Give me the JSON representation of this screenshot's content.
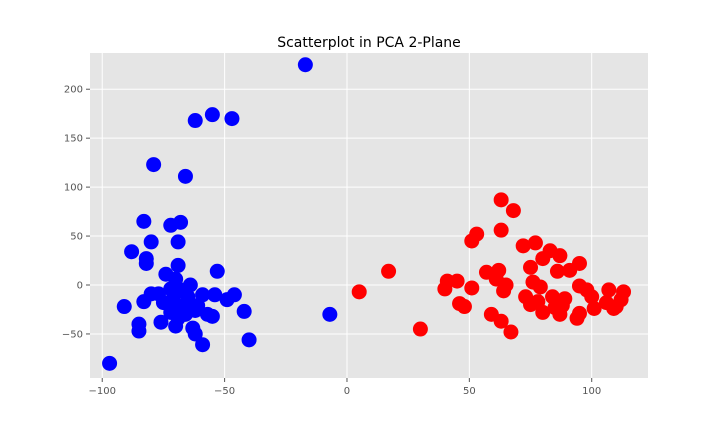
{
  "chart_data": {
    "type": "scatter",
    "title": "Scatterplot in PCA 2-Plane",
    "xlabel": "",
    "ylabel": "",
    "xlim": [
      -105,
      123
    ],
    "ylim": [
      -95,
      237
    ],
    "x_ticks": [
      -100,
      -50,
      0,
      50,
      100
    ],
    "y_ticks": [
      -50,
      0,
      50,
      100,
      150,
      200
    ],
    "grid": true,
    "background": "#e5e5e5",
    "series": [
      {
        "color": "#0000ff",
        "points": [
          [
            -17,
            225
          ],
          [
            -55,
            174
          ],
          [
            -47,
            170
          ],
          [
            -62,
            168
          ],
          [
            -79,
            123
          ],
          [
            -66,
            111
          ],
          [
            -83,
            65
          ],
          [
            -68,
            64
          ],
          [
            -72,
            61
          ],
          [
            -80,
            44
          ],
          [
            -69,
            44
          ],
          [
            -88,
            34
          ],
          [
            -82,
            27
          ],
          [
            -82,
            22
          ],
          [
            -69,
            20
          ],
          [
            -53,
            14
          ],
          [
            -74,
            11
          ],
          [
            -70,
            6
          ],
          [
            -64,
            0
          ],
          [
            -72,
            -4
          ],
          [
            -68,
            -5
          ],
          [
            -77,
            -9
          ],
          [
            -80,
            -9
          ],
          [
            -59,
            -10
          ],
          [
            -54,
            -10
          ],
          [
            -46,
            -10
          ],
          [
            -65,
            -12
          ],
          [
            -71,
            -14
          ],
          [
            -83,
            -17
          ],
          [
            -49,
            -15
          ],
          [
            -75,
            -18
          ],
          [
            -66,
            -20
          ],
          [
            -61,
            -21
          ],
          [
            -91,
            -22
          ],
          [
            -70,
            -24
          ],
          [
            -62,
            -26
          ],
          [
            -42,
            -27
          ],
          [
            -72,
            -28
          ],
          [
            -66,
            -30
          ],
          [
            -57,
            -30
          ],
          [
            -7,
            -30
          ],
          [
            -55,
            -32
          ],
          [
            -69,
            -34
          ],
          [
            -76,
            -38
          ],
          [
            -85,
            -40
          ],
          [
            -70,
            -42
          ],
          [
            -63,
            -44
          ],
          [
            -85,
            -47
          ],
          [
            -62,
            -50
          ],
          [
            -40,
            -56
          ],
          [
            -59,
            -61
          ],
          [
            -97,
            -80
          ]
        ]
      },
      {
        "color": "#ff0000",
        "points": [
          [
            63,
            87
          ],
          [
            68,
            76
          ],
          [
            63,
            56
          ],
          [
            53,
            52
          ],
          [
            51,
            45
          ],
          [
            77,
            43
          ],
          [
            72,
            40
          ],
          [
            83,
            35
          ],
          [
            87,
            30
          ],
          [
            80,
            27
          ],
          [
            95,
            22
          ],
          [
            75,
            18
          ],
          [
            86,
            14
          ],
          [
            91,
            15
          ],
          [
            17,
            14
          ],
          [
            57,
            13
          ],
          [
            62,
            15
          ],
          [
            61,
            6
          ],
          [
            41,
            4
          ],
          [
            45,
            4
          ],
          [
            76,
            3
          ],
          [
            95,
            -1
          ],
          [
            65,
            0
          ],
          [
            51,
            -3
          ],
          [
            79,
            -2
          ],
          [
            40,
            -4
          ],
          [
            98,
            -5
          ],
          [
            107,
            -5
          ],
          [
            113,
            -7
          ],
          [
            64,
            -6
          ],
          [
            5,
            -7
          ],
          [
            73,
            -12
          ],
          [
            84,
            -12
          ],
          [
            89,
            -14
          ],
          [
            100,
            -12
          ],
          [
            112,
            -15
          ],
          [
            78,
            -17
          ],
          [
            106,
            -18
          ],
          [
            46,
            -19
          ],
          [
            75,
            -20
          ],
          [
            110,
            -22
          ],
          [
            88,
            -21
          ],
          [
            48,
            -22
          ],
          [
            85,
            -23
          ],
          [
            101,
            -24
          ],
          [
            109,
            -24
          ],
          [
            80,
            -28
          ],
          [
            95,
            -29
          ],
          [
            87,
            -30
          ],
          [
            59,
            -30
          ],
          [
            94,
            -34
          ],
          [
            63,
            -37
          ],
          [
            30,
            -45
          ],
          [
            67,
            -48
          ]
        ]
      }
    ]
  }
}
